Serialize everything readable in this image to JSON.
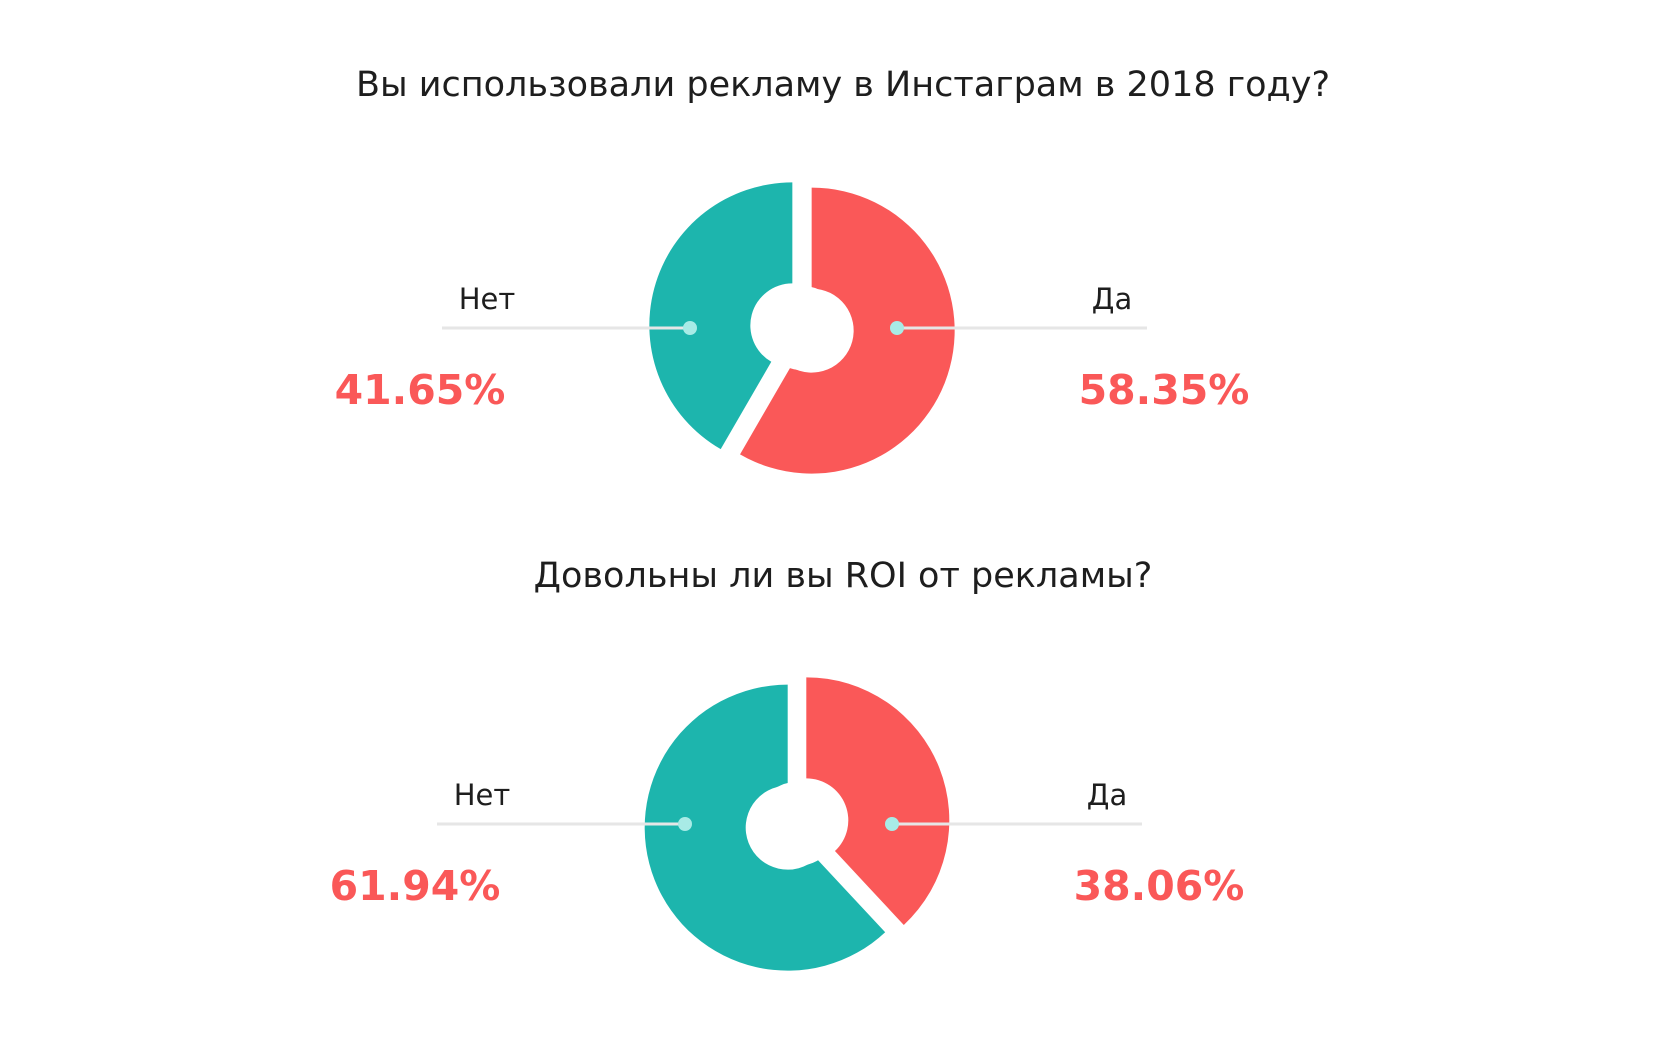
{
  "chart_data": [
    {
      "type": "pie",
      "title": "Вы использовали рекламу в Инстаграм в 2018 году?",
      "categories": [
        "Да",
        "Нет"
      ],
      "values": [
        58.35,
        41.65
      ],
      "value_labels": [
        "58.35%",
        "41.65%"
      ],
      "colors": [
        "#fa5858",
        "#1db5ad"
      ]
    },
    {
      "type": "pie",
      "title": "Довольны ли вы ROI от рекламы?",
      "categories": [
        "Да",
        "Нет"
      ],
      "values": [
        38.06,
        61.94
      ],
      "value_labels": [
        "38.06%",
        "61.94%"
      ],
      "colors": [
        "#fa5858",
        "#1db5ad"
      ]
    }
  ]
}
